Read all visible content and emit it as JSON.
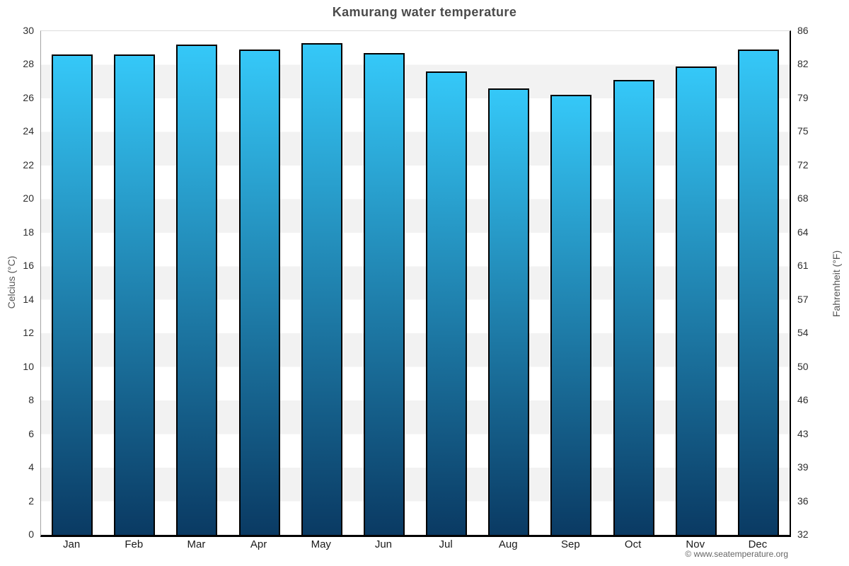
{
  "title": "Kamurang water temperature",
  "axes": {
    "left_label": "Celcius (°C)",
    "right_label": "Fahrenheit (°F)"
  },
  "footer": {
    "credit": "© www.seatemperature.org"
  },
  "colors": {
    "bar_gradient_top": "#35c8f8",
    "bar_gradient_bottom": "#0a3a63",
    "bar_border": "#000000",
    "band_gray": "#f2f2f2",
    "band_white": "#ffffff",
    "title_text": "#4a4a4a",
    "tick_text": "#2e2e2e",
    "axis_label_text": "#555555"
  },
  "chart_data": {
    "type": "bar",
    "title": "Kamurang water temperature",
    "categories": [
      "Jan",
      "Feb",
      "Mar",
      "Apr",
      "May",
      "Jun",
      "Jul",
      "Aug",
      "Sep",
      "Oct",
      "Nov",
      "Dec"
    ],
    "values": [
      28.6,
      28.6,
      29.2,
      28.9,
      29.3,
      28.7,
      27.6,
      26.6,
      26.2,
      27.1,
      27.9,
      28.9
    ],
    "unit": "°C",
    "ylabel_left": "Celcius (°C)",
    "ylabel_right": "Fahrenheit (°F)",
    "ylim": [
      0,
      30
    ],
    "tick_step": 2,
    "celsius_ticks": [
      0,
      2,
      4,
      6,
      8,
      10,
      12,
      14,
      16,
      18,
      20,
      22,
      24,
      26,
      28,
      30
    ],
    "fahrenheit_ticks": [
      "32",
      "36",
      "39",
      "43",
      "46",
      "50",
      "54",
      "57",
      "61",
      "64",
      "68",
      "72",
      "75",
      "79",
      "82",
      "86"
    ],
    "grid": "alternating horizontal bands every 2 degrees C, white and light gray",
    "legend": "none"
  }
}
